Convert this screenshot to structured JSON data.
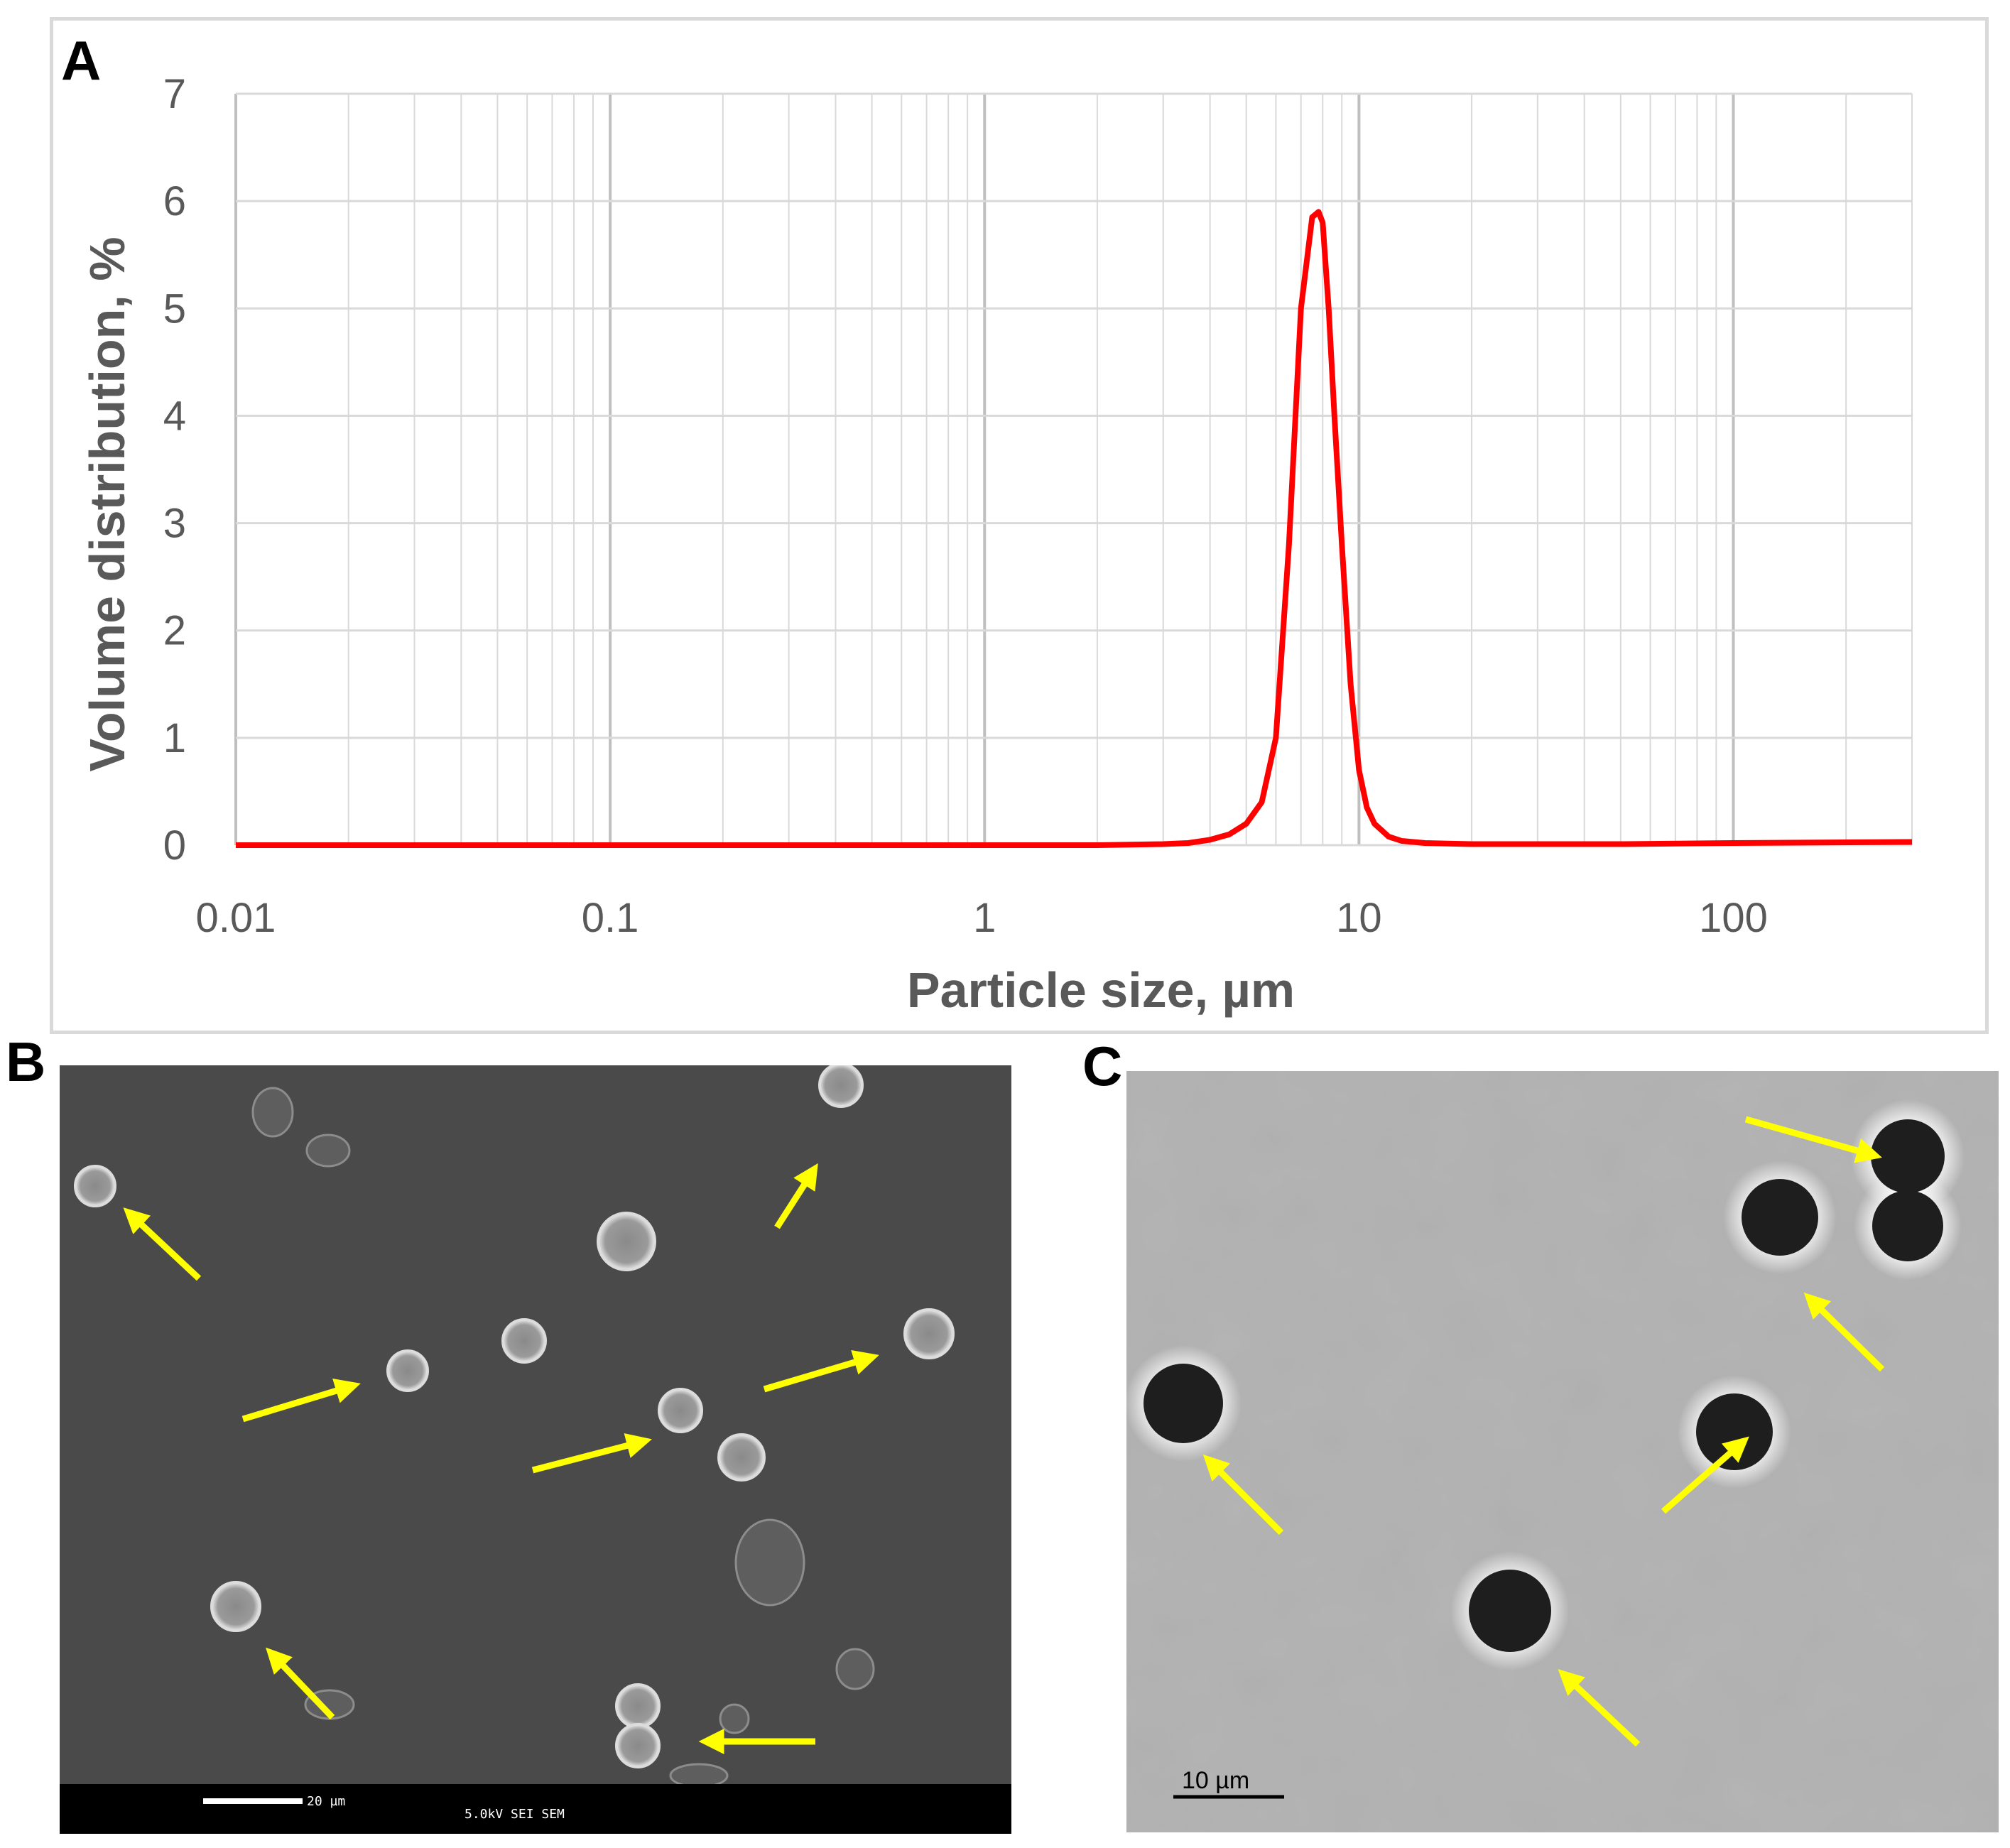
{
  "panels": {
    "a": "A",
    "b": "B",
    "c": "C"
  },
  "chart_data": {
    "type": "line",
    "xscale": "log",
    "xlim": [
      0.01,
      300
    ],
    "ylim": [
      0,
      7
    ],
    "yticks": [
      "0",
      "1",
      "2",
      "3",
      "4",
      "5",
      "6",
      "7"
    ],
    "xticks": [
      {
        "value": 0.01,
        "label": "0.01"
      },
      {
        "value": 0.1,
        "label": "0.1"
      },
      {
        "value": 1,
        "label": "1"
      },
      {
        "value": 10,
        "label": "10"
      },
      {
        "value": 100,
        "label": "100"
      }
    ],
    "xlabel": "Particle size, µm",
    "ylabel": "Volume distribution,  %",
    "grid": true,
    "line_color": "#ff0000",
    "series": [
      {
        "x": [
          0.01,
          0.1,
          1,
          2,
          3,
          3.5,
          4,
          4.5,
          5,
          5.5,
          6,
          6.5,
          7,
          7.5,
          7.8,
          8,
          8.3,
          8.6,
          9,
          9.5,
          10,
          10.5,
          11,
          12,
          13,
          15,
          20,
          50,
          100,
          300
        ],
        "y": [
          0,
          0,
          0,
          0,
          0.01,
          0.02,
          0.05,
          0.1,
          0.2,
          0.4,
          1.0,
          2.8,
          5.0,
          5.85,
          5.9,
          5.8,
          5.0,
          4.0,
          2.8,
          1.5,
          0.7,
          0.35,
          0.2,
          0.08,
          0.04,
          0.02,
          0.01,
          0.01,
          0.02,
          0.03
        ]
      }
    ]
  },
  "sem": {
    "scale_label": "20 µm",
    "info": "5.0kV  SEI       SEM"
  },
  "tem": {
    "scale_label": "10 µm"
  },
  "colors": {
    "arrow": "#ffff00",
    "curve": "#ff0000"
  }
}
